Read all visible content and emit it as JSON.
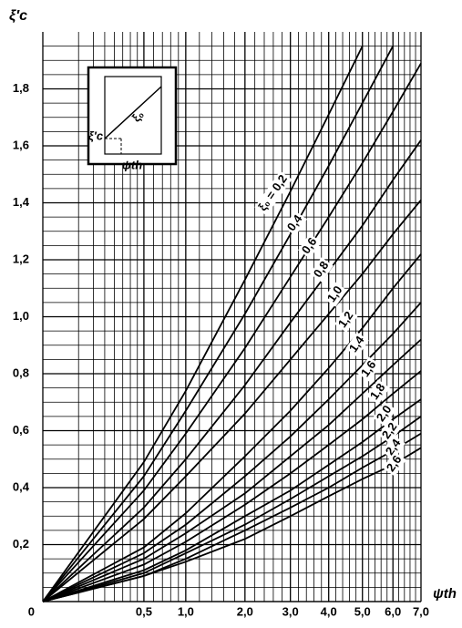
{
  "chart_data": {
    "type": "line",
    "x_label": "ψth",
    "y_label": "ξ′c",
    "x_scale": "sqrt",
    "x": [
      0,
      0.5,
      1,
      2,
      3,
      4,
      5,
      6,
      7
    ],
    "xlim": [
      0,
      7
    ],
    "xticks": [
      {
        "value": 0.5,
        "label": "0,5"
      },
      {
        "value": 1,
        "label": "1,0"
      },
      {
        "value": 2,
        "label": "2,0"
      },
      {
        "value": 3,
        "label": "3,0"
      },
      {
        "value": 4,
        "label": "4,0"
      },
      {
        "value": 5,
        "label": "5,0"
      },
      {
        "value": 6,
        "label": "6,0"
      },
      {
        "value": 7,
        "label": "7,0"
      }
    ],
    "ylim": [
      0,
      2
    ],
    "yticks": [
      0,
      {
        "value": 0.2,
        "label": "0,2"
      },
      {
        "value": 0.4,
        "label": "0,4"
      },
      {
        "value": 0.6,
        "label": "0,6"
      },
      {
        "value": 0.8,
        "label": "0,8"
      },
      {
        "value": 1,
        "label": "1,0"
      },
      {
        "value": 1.2,
        "label": "1,2"
      },
      {
        "value": 1.4,
        "label": "1,4"
      },
      {
        "value": 1.6,
        "label": "1,6"
      },
      {
        "value": 1.8,
        "label": "1,8"
      }
    ],
    "grid": true,
    "color": "#000000",
    "series": [
      {
        "name": "ξ₀ = 0,2",
        "values": [
          0,
          0.49,
          0.74,
          1.13,
          1.44,
          1.71,
          1.95,
          null,
          null
        ]
      },
      {
        "name": "0,4",
        "values": [
          0,
          0.44,
          0.67,
          1.01,
          1.29,
          1.53,
          1.75,
          1.95,
          null
        ]
      },
      {
        "name": "0,6",
        "values": [
          0,
          0.39,
          0.59,
          0.89,
          1.14,
          1.35,
          1.54,
          1.72,
          1.89
        ]
      },
      {
        "name": "0,8",
        "values": [
          0,
          0.33,
          0.5,
          0.76,
          0.98,
          1.16,
          1.32,
          1.48,
          1.62
        ]
      },
      {
        "name": "1,0",
        "values": [
          0,
          0.29,
          0.44,
          0.66,
          0.85,
          1.01,
          1.15,
          1.29,
          1.41
        ]
      },
      {
        "name": "1,2",
        "values": [
          0,
          0.19,
          0.31,
          0.51,
          0.67,
          0.82,
          0.96,
          1.1,
          1.22
        ]
      },
      {
        "name": "1,4",
        "values": [
          0,
          0.17,
          0.27,
          0.44,
          0.58,
          0.71,
          0.83,
          0.94,
          1.05
        ]
      },
      {
        "name": "1,6",
        "values": [
          0,
          0.15,
          0.24,
          0.38,
          0.51,
          0.62,
          0.73,
          0.83,
          0.92
        ]
      },
      {
        "name": "1,8",
        "values": [
          0,
          0.13,
          0.21,
          0.34,
          0.45,
          0.55,
          0.64,
          0.73,
          0.81
        ]
      },
      {
        "name": "2,0",
        "values": [
          0,
          0.11,
          0.18,
          0.3,
          0.39,
          0.48,
          0.56,
          0.64,
          0.71
        ]
      },
      {
        "name": "2,2",
        "values": [
          0,
          0.1,
          0.17,
          0.27,
          0.36,
          0.44,
          0.51,
          0.58,
          0.65
        ]
      },
      {
        "name": "2,4",
        "values": [
          0,
          0.09,
          0.15,
          0.25,
          0.33,
          0.4,
          0.47,
          0.53,
          0.59
        ]
      },
      {
        "name": "2,6",
        "values": [
          0,
          0.09,
          0.14,
          0.22,
          0.3,
          0.37,
          0.43,
          0.48,
          0.54
        ]
      }
    ],
    "inset": {
      "y_label": "ξ′c",
      "curve_label": "ξ₀",
      "x_label": "ψth"
    }
  }
}
